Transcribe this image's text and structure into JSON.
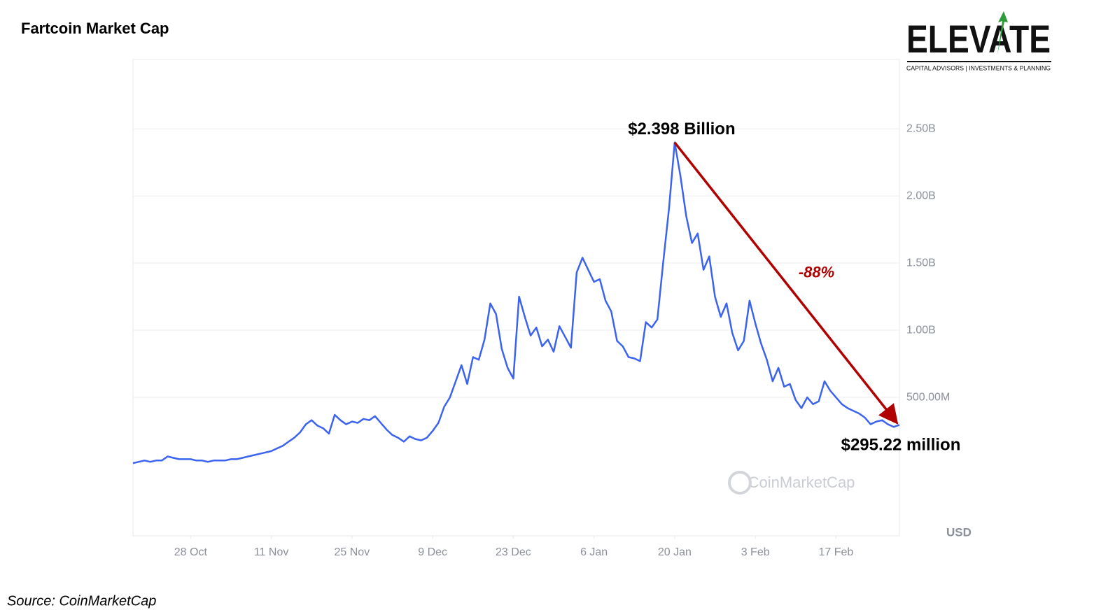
{
  "chart_data": {
    "type": "line",
    "title": "Fartcoin Market Cap",
    "x": [
      0,
      1,
      2,
      3,
      4,
      5,
      6,
      7,
      8,
      9,
      10,
      11,
      12,
      13,
      14,
      15,
      16,
      17,
      18,
      19,
      20,
      21,
      22,
      23,
      24,
      25,
      26,
      27,
      28,
      29,
      30,
      31,
      32,
      33,
      34,
      35,
      36,
      37,
      38,
      39,
      40,
      41,
      42,
      43,
      44,
      45,
      46,
      47,
      48,
      49,
      50,
      51,
      52,
      53,
      54,
      55,
      56,
      57,
      58,
      59,
      60,
      61,
      62,
      63,
      64,
      65,
      66,
      67,
      68,
      69,
      70,
      71,
      72,
      73,
      74,
      75,
      76,
      77,
      78,
      79,
      80,
      81,
      82,
      83,
      84,
      85,
      86,
      87,
      88,
      89,
      90,
      91,
      92,
      93,
      94,
      95,
      96,
      97,
      98,
      99,
      100,
      101,
      102,
      103,
      104,
      105,
      106,
      107,
      108,
      109,
      110,
      111,
      112,
      113,
      114,
      115,
      116,
      117,
      118,
      119,
      120,
      121,
      122,
      123,
      124,
      125,
      126,
      127,
      128,
      129,
      130,
      131,
      132,
      133
    ],
    "values": [
      0.01,
      0.02,
      0.03,
      0.02,
      0.03,
      0.03,
      0.06,
      0.05,
      0.04,
      0.04,
      0.04,
      0.03,
      0.03,
      0.02,
      0.03,
      0.03,
      0.03,
      0.04,
      0.04,
      0.05,
      0.06,
      0.07,
      0.08,
      0.09,
      0.1,
      0.12,
      0.14,
      0.17,
      0.2,
      0.24,
      0.3,
      0.33,
      0.29,
      0.27,
      0.23,
      0.37,
      0.33,
      0.3,
      0.32,
      0.31,
      0.34,
      0.33,
      0.36,
      0.31,
      0.26,
      0.22,
      0.2,
      0.17,
      0.21,
      0.19,
      0.18,
      0.2,
      0.25,
      0.31,
      0.43,
      0.5,
      0.62,
      0.74,
      0.6,
      0.8,
      0.78,
      0.93,
      1.2,
      1.12,
      0.86,
      0.72,
      0.64,
      1.25,
      1.1,
      0.96,
      1.02,
      0.88,
      0.93,
      0.84,
      1.03,
      0.95,
      0.87,
      1.43,
      1.54,
      1.45,
      1.36,
      1.38,
      1.22,
      1.14,
      0.92,
      0.88,
      0.8,
      0.79,
      0.77,
      1.06,
      1.02,
      1.08,
      1.5,
      1.9,
      2.398,
      2.15,
      1.85,
      1.65,
      1.72,
      1.45,
      1.55,
      1.25,
      1.1,
      1.2,
      0.98,
      0.85,
      0.92,
      1.22,
      1.05,
      0.9,
      0.78,
      0.62,
      0.72,
      0.58,
      0.6,
      0.48,
      0.42,
      0.5,
      0.45,
      0.47,
      0.62,
      0.55,
      0.5,
      0.45,
      0.42,
      0.4,
      0.38,
      0.35,
      0.3,
      0.32,
      0.33,
      0.3,
      0.28,
      0.29522
    ],
    "color": "#3b63f0",
    "xlim": [
      0,
      133
    ],
    "xticks": [
      {
        "value": 10,
        "label": "28 Oct"
      },
      {
        "value": 24,
        "label": "11 Nov"
      },
      {
        "value": 38,
        "label": "25 Nov"
      },
      {
        "value": 52,
        "label": "9 Dec"
      },
      {
        "value": 66,
        "label": "23 Dec"
      },
      {
        "value": 80,
        "label": "6 Jan"
      },
      {
        "value": 94,
        "label": "20 Jan"
      },
      {
        "value": 108,
        "label": "3 Feb"
      },
      {
        "value": 122,
        "label": "17 Feb"
      }
    ],
    "ylim": [
      -0.531,
      3.016
    ],
    "yticks": [
      {
        "value": 0.5,
        "label": "500.00M"
      },
      {
        "value": 1,
        "label": "1.00B"
      },
      {
        "value": 1.5,
        "label": "1.50B"
      },
      {
        "value": 2,
        "label": "2.00B"
      },
      {
        "value": 2.5,
        "label": "2.50B"
      }
    ],
    "grid": true,
    "y_unit": "USD",
    "watermark": "CoinMarketCap",
    "annotations": {
      "peak": "$2.398 Billion",
      "last": "$295.22 million",
      "change": "-88%"
    },
    "source": "Source: CoinMarketCap"
  },
  "logo": {
    "name": "ELEVATE",
    "tagline": "CAPITAL ADVISORS | INVESTMENTS & PLANNING"
  }
}
